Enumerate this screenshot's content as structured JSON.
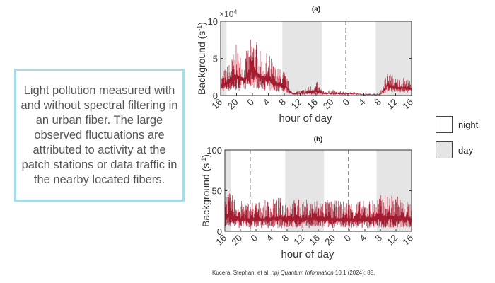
{
  "caption": "Light pollution measured with and without spectral filtering in an urban fiber. The large observed fluctuations are attributed to activity at the patch stations or data traffic in the nearby located fibers.",
  "citation": {
    "authors": "Kucera, Stephan, et al. ",
    "journal": "npj Quantum Information",
    "rest": " 10.1 (2024): 88."
  },
  "legend": [
    {
      "label": "night",
      "color": "#ffffff"
    },
    {
      "label": "day",
      "color": "#e5e5e5"
    }
  ],
  "colors": {
    "series": "#a51c30",
    "day_shade": "#e5e5e5",
    "caption_border": "#a6dbe8"
  },
  "chart_data": [
    {
      "type": "line",
      "title": "(a)",
      "xlabel": "hour of day",
      "ylabel": "Background (s",
      "ylabel_sup": "-1",
      "ylabel_close": ")",
      "y_multiplier": "×10",
      "y_multiplier_sup": "4",
      "x_ticks": [
        "16",
        "20",
        "0",
        "4",
        "8",
        "12",
        "16",
        "20",
        "0",
        "4",
        "8",
        "12",
        "16"
      ],
      "x_range": [
        "16 (day 1)",
        "16 (day 3)"
      ],
      "y_ticks": [
        "0",
        "5",
        "10"
      ],
      "ylim": [
        0,
        10
      ],
      "day_shading": [
        {
          "from": "16",
          "to": "17.5"
        },
        {
          "from": "7.5",
          "to": "17.5"
        },
        {
          "from": "7",
          "to": "16"
        }
      ],
      "dashed_lines": [
        "23.5"
      ],
      "sample_every_hours": 2,
      "upper_envelope": [
        3,
        4.5,
        7,
        5,
        9.5,
        6,
        6,
        4,
        3.5,
        0.5,
        0.8,
        1.2,
        2,
        0.6,
        0.8,
        0.6,
        0.5,
        0.5,
        0.3,
        0.3,
        0.3,
        3.5,
        2.5,
        2.5,
        2
      ],
      "lower_envelope": [
        0.5,
        0.6,
        0.6,
        0.8,
        1,
        0.8,
        0.6,
        0.5,
        0.5,
        0.1,
        0.1,
        0.1,
        0.1,
        0.1,
        0.1,
        0.1,
        0.1,
        0.1,
        0.05,
        0.05,
        0.05,
        0.5,
        0.4,
        0.4,
        0.4
      ]
    },
    {
      "type": "line",
      "title": "(b)",
      "xlabel": "hour of day",
      "ylabel": "Background (s",
      "ylabel_sup": "-1",
      "ylabel_close": ")",
      "x_ticks": [
        "16",
        "20",
        "0",
        "4",
        "8",
        "12",
        "16",
        "20",
        "0",
        "4",
        "8",
        "12",
        "16"
      ],
      "y_ticks": [
        "0",
        "50",
        "100"
      ],
      "ylim": [
        0,
        100
      ],
      "day_shading": [
        {
          "from": "16",
          "to": "17.5"
        },
        {
          "from": "7.5",
          "to": "17.5"
        },
        {
          "from": "7",
          "to": "16"
        }
      ],
      "dashed_lines": [
        "22.5",
        "23.8"
      ],
      "sample_every_hours": 2,
      "upper_envelope": [
        50,
        45,
        38,
        38,
        38,
        38,
        40,
        42,
        42,
        40,
        40,
        40,
        40,
        40,
        38,
        38,
        38,
        38,
        38,
        40,
        45,
        45,
        45,
        40,
        38
      ],
      "lower_envelope": [
        6,
        5,
        4,
        4,
        4,
        4,
        4,
        4,
        4,
        4,
        4,
        4,
        4,
        4,
        4,
        4,
        4,
        4,
        4,
        4,
        4,
        4,
        4,
        4,
        4
      ]
    }
  ]
}
